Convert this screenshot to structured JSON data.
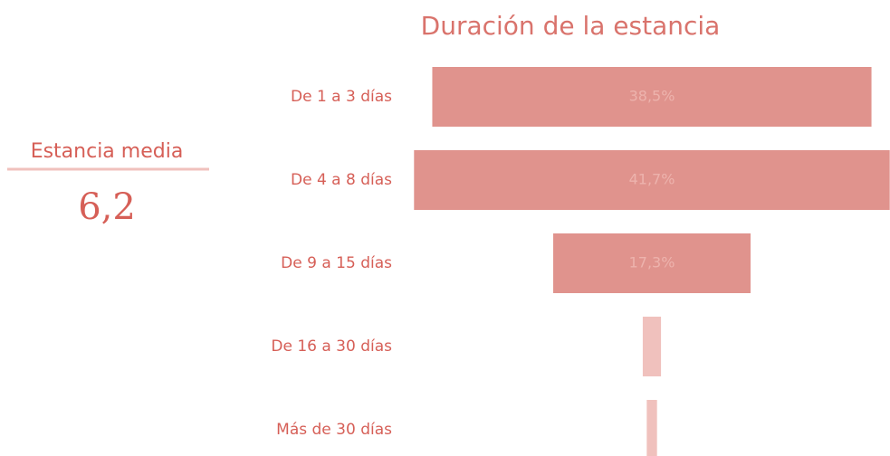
{
  "kpi": {
    "label": "Estancia media",
    "value": "6,2"
  },
  "chart_data": {
    "type": "funnel",
    "title": "Duración de la estancia",
    "categories": [
      "De 1 a 3 días",
      "De 4 a 8 días",
      "De 9 a 15 días",
      "De 16 a 30 días",
      "Más de 30 días"
    ],
    "values": [
      38.5,
      41.7,
      17.3,
      1.6,
      0.9
    ],
    "value_labels": [
      "38,5%",
      "41,7%",
      "17,3%",
      null,
      null
    ],
    "colors": [
      "#e0938d",
      "#e0938d",
      "#e0938d",
      "#f0c1bd",
      "#f0c1bd"
    ]
  }
}
